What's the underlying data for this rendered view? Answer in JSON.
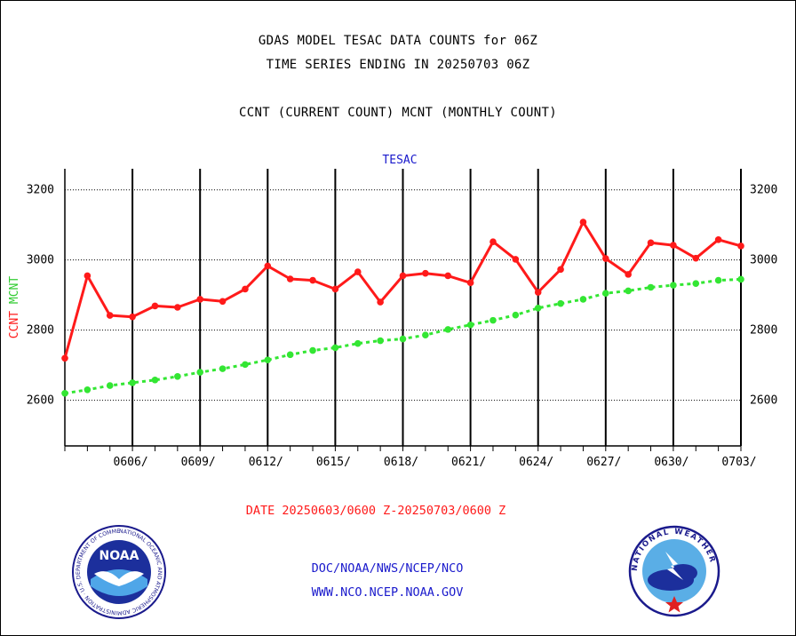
{
  "header": {
    "title_line1": "GDAS MODEL TESAC DATA COUNTS for 06Z",
    "title_line2": "TIME SERIES ENDING IN 20250703 06Z",
    "subtitle": "CCNT (CURRENT COUNT) MCNT (MONTHLY COUNT)"
  },
  "colors": {
    "ccnt": "#ff1a1a",
    "mcnt": "#33e633",
    "text_blue": "#1a1acc",
    "ylabel_red": "#ff1a1a",
    "ylabel_green": "#33cc33"
  },
  "chart_data": {
    "type": "line",
    "title": "TESAC",
    "ylabel_parts": [
      "CCNT",
      "MCNT"
    ],
    "xlabel": "DATE 20250603/0600 Z-20250703/0600 Z",
    "ylim": [
      2470,
      3260
    ],
    "xlim": [
      0,
      30
    ],
    "grid": true,
    "yticks": [
      2600,
      2800,
      3000,
      3200
    ],
    "xticks": [
      {
        "i": 3,
        "label": "0606/"
      },
      {
        "i": 6,
        "label": "0609/"
      },
      {
        "i": 9,
        "label": "0612/"
      },
      {
        "i": 12,
        "label": "0615/"
      },
      {
        "i": 15,
        "label": "0618/"
      },
      {
        "i": 18,
        "label": "0621/"
      },
      {
        "i": 21,
        "label": "0624/"
      },
      {
        "i": 24,
        "label": "0627/"
      },
      {
        "i": 27,
        "label": "0630/"
      },
      {
        "i": 30,
        "label": "0703/"
      }
    ],
    "x": [
      "0603",
      "0604",
      "0605",
      "0606",
      "0607",
      "0608",
      "0609",
      "0610",
      "0611",
      "0612",
      "0613",
      "0614",
      "0615",
      "0616",
      "0617",
      "0618",
      "0619",
      "0620",
      "0621",
      "0622",
      "0623",
      "0624",
      "0625",
      "0626",
      "0627",
      "0628",
      "0629",
      "0630",
      "0701",
      "0702",
      "0703"
    ],
    "series": [
      {
        "name": "CCNT",
        "values": [
          2720,
          2955,
          2842,
          2838,
          2869,
          2865,
          2888,
          2882,
          2917,
          2983,
          2946,
          2942,
          2917,
          2966,
          2880,
          2955,
          2962,
          2955,
          2935,
          3052,
          3002,
          2908,
          2973,
          3108,
          3004,
          2959,
          3049,
          3042,
          3005,
          3058,
          3040
        ]
      },
      {
        "name": "MCNT",
        "values": [
          2620,
          2630,
          2642,
          2650,
          2658,
          2668,
          2680,
          2690,
          2702,
          2715,
          2730,
          2742,
          2750,
          2762,
          2770,
          2775,
          2786,
          2802,
          2815,
          2828,
          2843,
          2863,
          2876,
          2888,
          2905,
          2912,
          2922,
          2928,
          2933,
          2942,
          2945
        ]
      }
    ]
  },
  "footer": {
    "line1": "DOC/NOAA/NWS/NCEP/NCO",
    "line2": "WWW.NCO.NCEP.NOAA.GOV",
    "noaa_logo_text": "NOAA",
    "noaa_seal_ring": "NATIONAL OCEANIC AND ATMOSPHERIC ADMINISTRATION · U.S. DEPARTMENT OF COMMERCE",
    "nws_seal_ring": "NATIONAL WEATHER SERVICE"
  }
}
